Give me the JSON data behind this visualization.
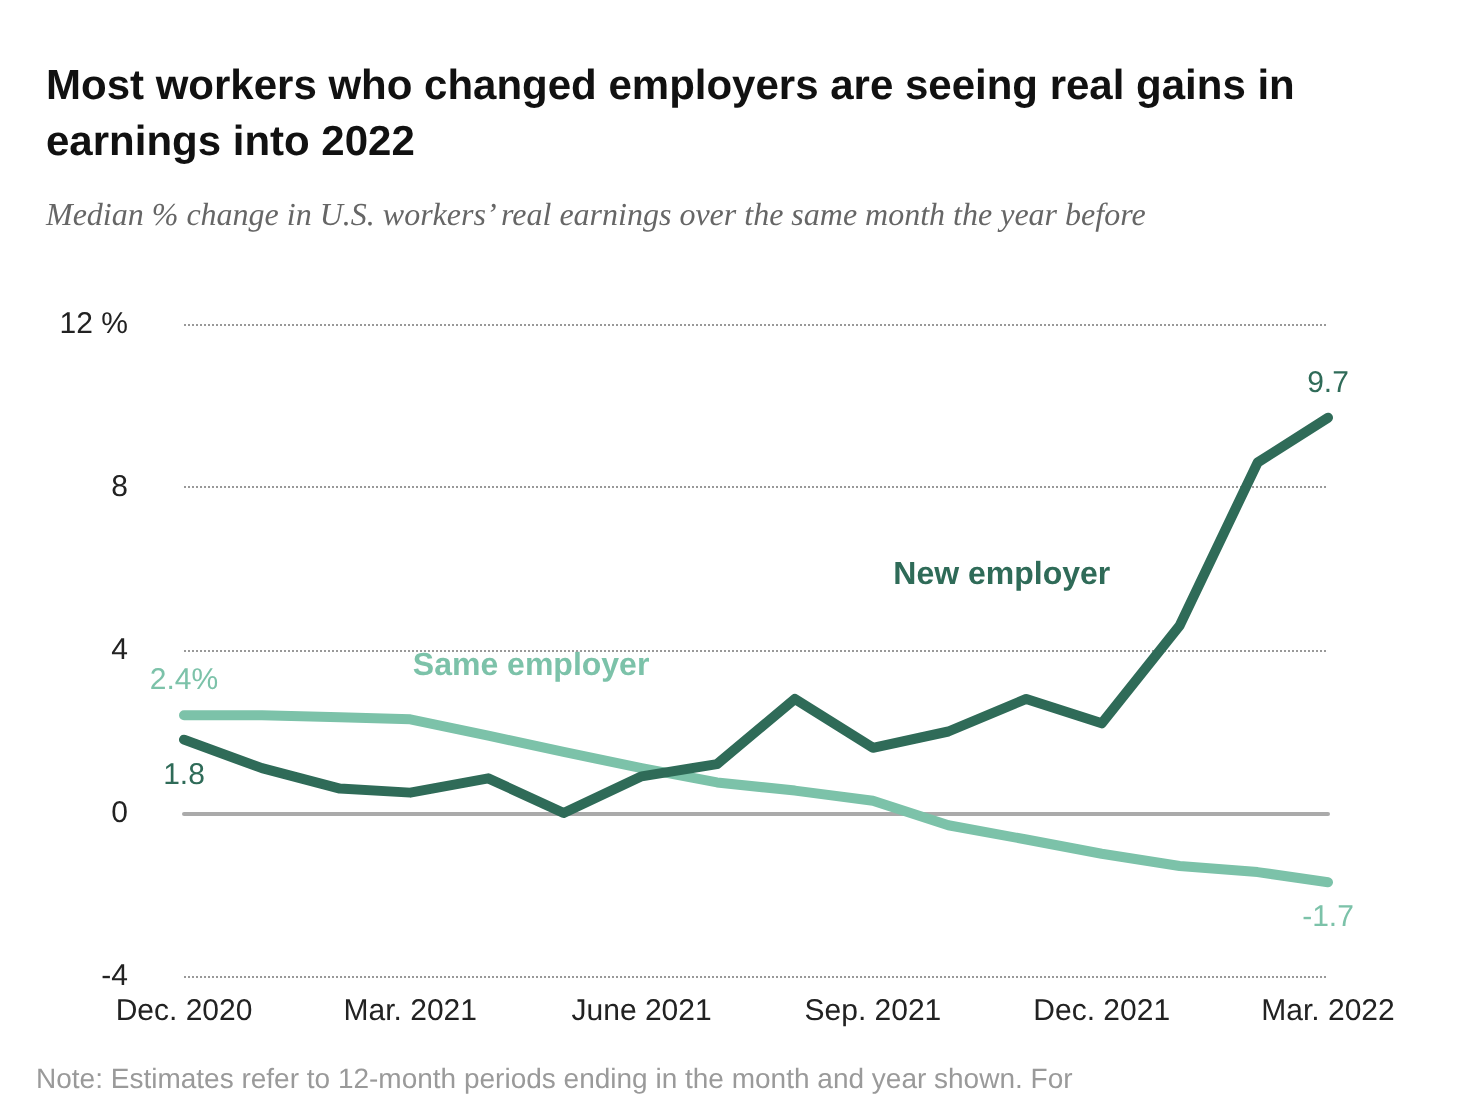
{
  "chart_data": {
    "type": "line",
    "title": "Most workers who changed employers are seeing real gains in earnings into 2022",
    "subtitle": "Median % change in U.S. workers’ real earnings over the same month the year before",
    "x": [
      "2020-12",
      "2021-01",
      "2021-02",
      "2021-03",
      "2021-04",
      "2021-05",
      "2021-06",
      "2021-07",
      "2021-08",
      "2021-09",
      "2021-10",
      "2021-11",
      "2021-12",
      "2022-01",
      "2022-02",
      "2022-03"
    ],
    "series": [
      {
        "name": "New employer",
        "color": "#2f6b58",
        "values": [
          1.8,
          1.1,
          0.6,
          0.5,
          0.85,
          0,
          0.9,
          1.2,
          2.8,
          1.6,
          2.0,
          2.8,
          2.2,
          4.6,
          8.6,
          9.7
        ],
        "value_labels": [
          "1.8",
          null,
          null,
          null,
          null,
          null,
          null,
          null,
          null,
          null,
          null,
          null,
          null,
          null,
          null,
          "9.7"
        ]
      },
      {
        "name": "Same employer",
        "color": "#7cc2a9",
        "values": [
          2.4,
          2.4,
          2.35,
          2.3,
          1.9,
          1.5,
          1.1,
          0.75,
          0.55,
          0.3,
          -0.3,
          -0.65,
          -1.0,
          -1.3,
          -1.45,
          -1.7
        ],
        "value_labels": [
          "2.4%",
          null,
          null,
          null,
          null,
          null,
          null,
          null,
          null,
          null,
          null,
          null,
          null,
          null,
          null,
          "-1.7"
        ]
      }
    ],
    "xlim": [
      "2020-12",
      "2022-03"
    ],
    "xticks": [
      {
        "value": "2020-12",
        "label": "Dec. 2020"
      },
      {
        "value": "2021-03",
        "label": "Mar. 2021"
      },
      {
        "value": "2021-06",
        "label": "June 2021"
      },
      {
        "value": "2021-09",
        "label": "Sep. 2021"
      },
      {
        "value": "2021-12",
        "label": "Dec. 2021"
      },
      {
        "value": "2022-03",
        "label": "Mar. 2022"
      }
    ],
    "ylim": [
      -4,
      12
    ],
    "yticks": [
      {
        "value": 12,
        "label": "12 %"
      },
      8,
      4,
      0,
      -4
    ],
    "grid": "y",
    "legend": false,
    "marker": "none",
    "line_style": "solid",
    "annotations": [
      "Note: Estimates refer to 12-month periods ending in the month and year shown. For"
    ]
  }
}
